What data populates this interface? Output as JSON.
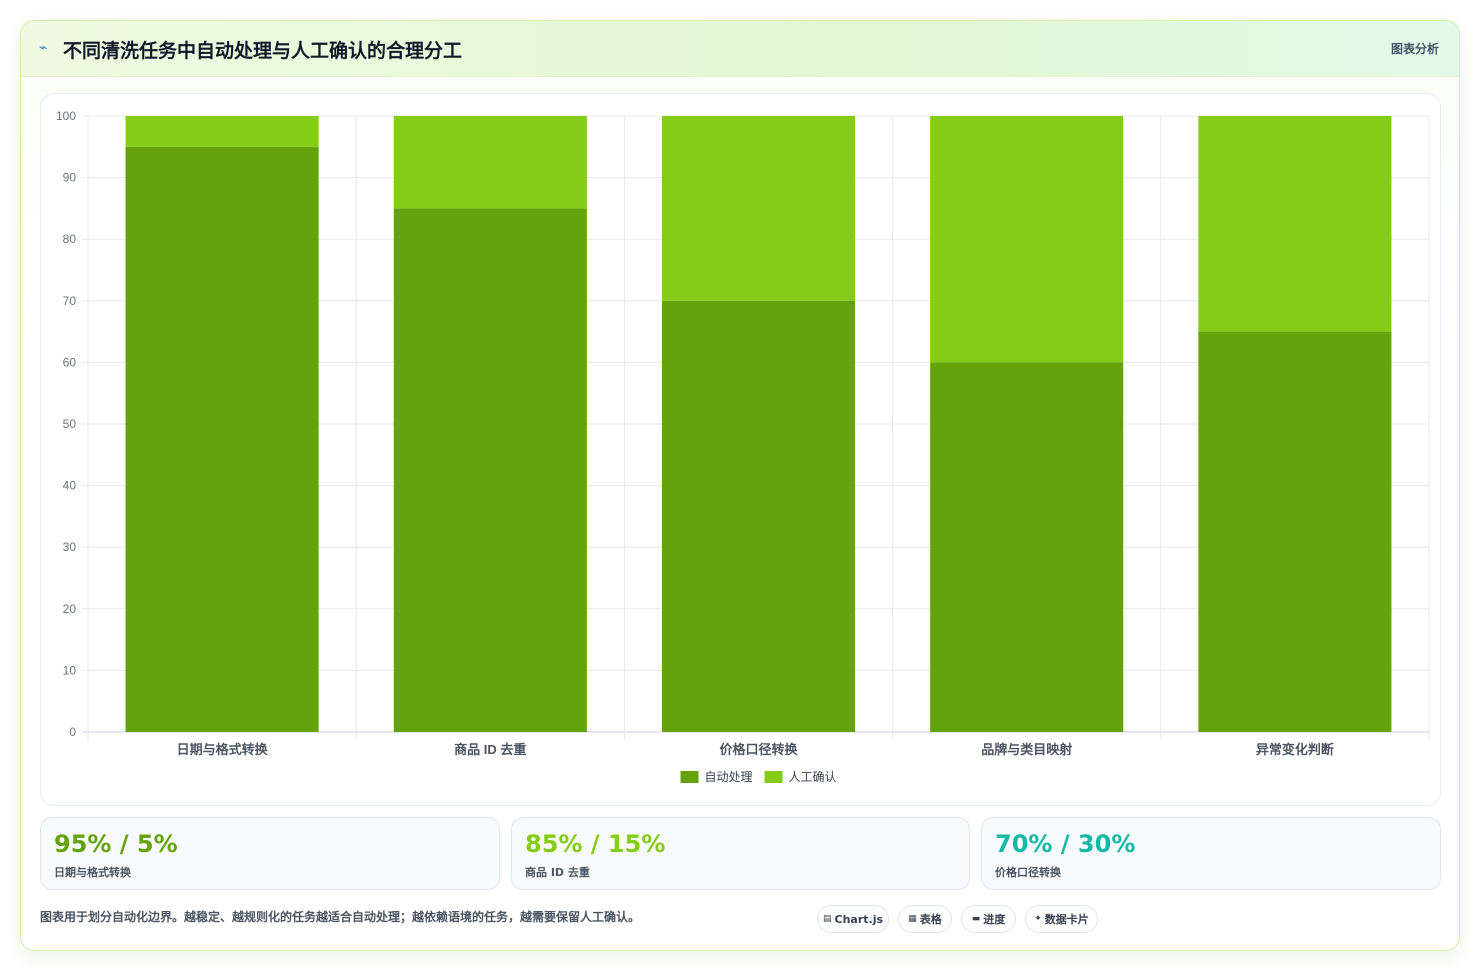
{
  "header": {
    "icon": "sparkle-icon",
    "title": "不同清洗任务中自动处理与人工确认的合理分工",
    "tag": "图表分析"
  },
  "chart_data": {
    "type": "bar",
    "stacked": true,
    "categories": [
      "日期与格式转换",
      "商品 ID 去重",
      "价格口径转换",
      "品牌与类目映射",
      "异常变化判断"
    ],
    "series": [
      {
        "name": "自动处理",
        "values": [
          95,
          85,
          70,
          60,
          65
        ],
        "color": "#65a30d"
      },
      {
        "name": "人工确认",
        "values": [
          5,
          15,
          30,
          40,
          35
        ],
        "color": "#84cc16"
      }
    ],
    "ylim": [
      0,
      100
    ],
    "yticks": [
      0,
      10,
      20,
      30,
      40,
      50,
      60,
      70,
      80,
      90,
      100
    ],
    "grid": true,
    "legend": "bottom"
  },
  "stats": [
    {
      "value": "95% / 5%",
      "label": "日期与格式转换",
      "color": "#65a30d"
    },
    {
      "value": "85% / 15%",
      "label": "商品 ID 去重",
      "color": "#84cc16"
    },
    {
      "value": "70% / 30%",
      "label": "价格口径转换",
      "color": "#14b8a6"
    }
  ],
  "footnote": "图表用于划分自动化边界。越稳定、越规则化的任务越适合自动处理；越依赖语境的任务，越需要保留人工确认。",
  "chips": [
    {
      "icon": "chart-icon",
      "glyph": "▤",
      "label": "Chart.js"
    },
    {
      "icon": "table-icon",
      "glyph": "▦",
      "label": "表格"
    },
    {
      "icon": "progress-icon",
      "glyph": "▬",
      "label": "进度"
    },
    {
      "icon": "card-icon",
      "glyph": "✦",
      "label": "数据卡片"
    }
  ]
}
